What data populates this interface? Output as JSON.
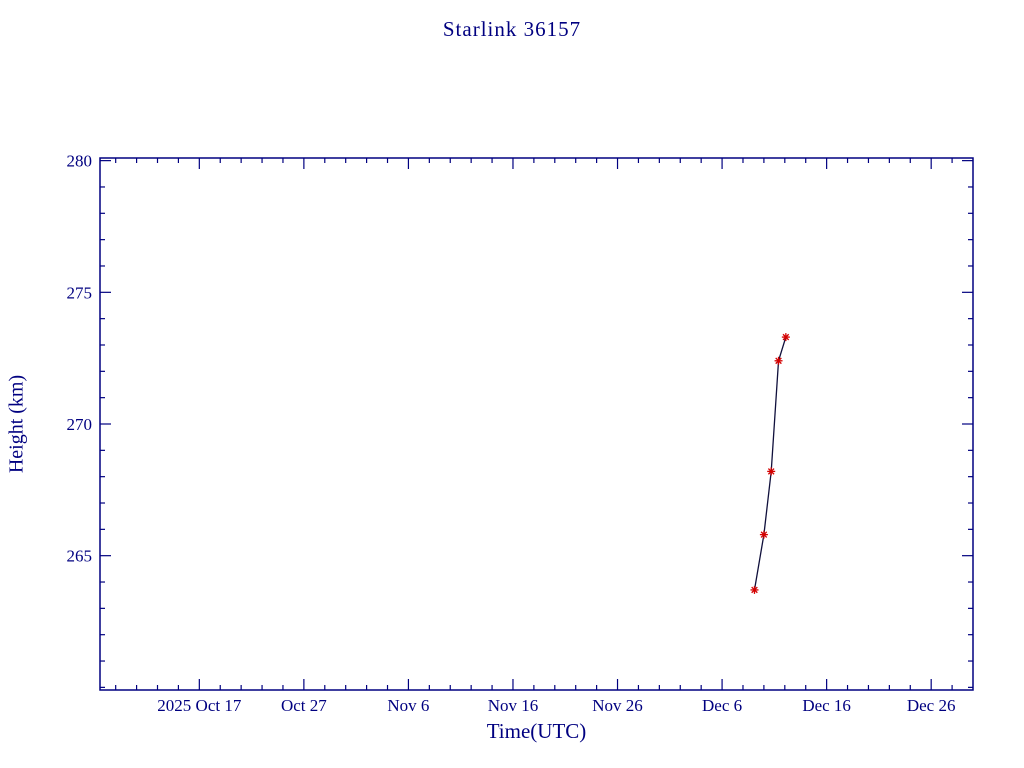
{
  "chart_data": {
    "type": "line",
    "title": "Starlink 36157",
    "xlabel": "Time(UTC)",
    "ylabel": "Height (km)",
    "axis_color": "#000080",
    "text_color": "#000080",
    "background": "#ffffff",
    "grid": false,
    "legend": false,
    "x_unit": "days since 2025-10-07 00:00 UTC",
    "xlim": [
      0.5,
      84
    ],
    "ylim": [
      259.9,
      280.1
    ],
    "x_minor_step": 2,
    "y_minor_step": 1,
    "x_ticks": [
      {
        "value": 10,
        "label": "2025 Oct 17"
      },
      {
        "value": 20,
        "label": "Oct 27"
      },
      {
        "value": 30,
        "label": "Nov 6"
      },
      {
        "value": 40,
        "label": "Nov 16"
      },
      {
        "value": 50,
        "label": "Nov 26"
      },
      {
        "value": 60,
        "label": "Dec 6"
      },
      {
        "value": 70,
        "label": "Dec 16"
      },
      {
        "value": 80,
        "label": "Dec 26"
      }
    ],
    "y_ticks": [
      {
        "value": 265,
        "label": "265"
      },
      {
        "value": 270,
        "label": "270"
      },
      {
        "value": 275,
        "label": "275"
      },
      {
        "value": 280,
        "label": "280"
      }
    ],
    "series": [
      {
        "name": "height",
        "marker": "asterisk",
        "marker_color": "#d40000",
        "line_color": "#10103c",
        "points": [
          {
            "x": 63.1,
            "date": "2025 Dec 9",
            "y": 263.7
          },
          {
            "x": 64.0,
            "date": "2025 Dec 10",
            "y": 265.8
          },
          {
            "x": 64.7,
            "date": "2025 Dec 10",
            "y": 268.2
          },
          {
            "x": 65.4,
            "date": "2025 Dec 11",
            "y": 272.4
          },
          {
            "x": 66.1,
            "date": "2025 Dec 12",
            "y": 273.3
          }
        ]
      }
    ]
  }
}
